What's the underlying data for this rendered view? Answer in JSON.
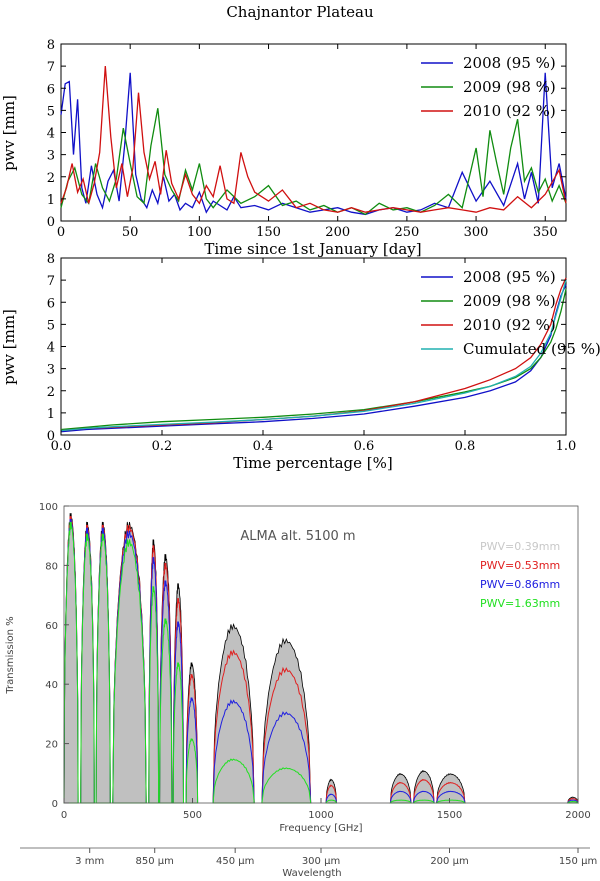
{
  "page_title": "Chajnantor Plateau",
  "chart_data": [
    {
      "type": "line",
      "xlabel": "Time since 1st January [day]",
      "ylabel": "pwv [mm]",
      "xlim": [
        0,
        365
      ],
      "ylim": [
        0,
        8
      ],
      "x_ticks": [
        "0",
        "50",
        "100",
        "150",
        "200",
        "250",
        "300",
        "350"
      ],
      "y_ticks": [
        "0",
        "1",
        "2",
        "3",
        "4",
        "5",
        "6",
        "7",
        "8"
      ],
      "legend_position": "top-right",
      "series": [
        {
          "name": "2008 (95 %)",
          "color": "#1010c8",
          "x": [
            0,
            3,
            6,
            9,
            12,
            15,
            18,
            22,
            26,
            30,
            34,
            38,
            42,
            46,
            50,
            54,
            58,
            62,
            66,
            70,
            74,
            78,
            82,
            86,
            90,
            95,
            100,
            105,
            110,
            115,
            120,
            125,
            130,
            140,
            150,
            160,
            170,
            180,
            190,
            200,
            210,
            220,
            230,
            240,
            250,
            260,
            270,
            280,
            290,
            300,
            310,
            320,
            330,
            335,
            340,
            345,
            350,
            355,
            360,
            365
          ],
          "y": [
            4.8,
            6.2,
            6.3,
            3.0,
            5.5,
            1.5,
            0.8,
            2.5,
            1.2,
            0.6,
            1.8,
            2.3,
            0.9,
            3.4,
            6.7,
            2.1,
            1.0,
            0.6,
            1.4,
            0.8,
            2.0,
            0.9,
            1.2,
            0.5,
            0.8,
            0.6,
            1.3,
            0.4,
            0.9,
            0.7,
            0.5,
            1.1,
            0.6,
            0.7,
            0.5,
            0.8,
            0.6,
            0.4,
            0.5,
            0.6,
            0.4,
            0.3,
            0.5,
            0.6,
            0.4,
            0.5,
            0.8,
            0.6,
            2.2,
            0.9,
            1.8,
            0.7,
            2.6,
            1.0,
            2.2,
            0.8,
            6.7,
            1.5,
            2.6,
            1.0
          ]
        },
        {
          "name": "2009 (98 %)",
          "color": "#108c10",
          "x": [
            0,
            5,
            10,
            15,
            20,
            25,
            30,
            35,
            40,
            45,
            50,
            55,
            60,
            65,
            70,
            75,
            80,
            85,
            90,
            95,
            100,
            105,
            110,
            120,
            130,
            140,
            150,
            160,
            170,
            180,
            190,
            200,
            210,
            220,
            230,
            240,
            250,
            260,
            270,
            280,
            290,
            300,
            305,
            310,
            315,
            320,
            325,
            330,
            335,
            340,
            345,
            350,
            355,
            360,
            365
          ],
          "y": [
            0.6,
            1.8,
            2.4,
            1.2,
            0.8,
            2.6,
            1.5,
            0.9,
            1.9,
            4.2,
            2.6,
            1.1,
            0.8,
            3.4,
            5.1,
            2.1,
            1.4,
            0.9,
            2.3,
            1.4,
            2.6,
            1.0,
            0.6,
            1.4,
            0.8,
            1.1,
            1.6,
            0.7,
            0.9,
            0.5,
            0.7,
            0.4,
            0.6,
            0.3,
            0.8,
            0.5,
            0.6,
            0.4,
            0.7,
            1.2,
            0.6,
            3.3,
            1.1,
            4.1,
            2.6,
            1.2,
            3.3,
            4.6,
            1.8,
            2.4,
            1.3,
            1.9,
            0.9,
            1.6,
            0.8
          ]
        },
        {
          "name": "2010 (92 %)",
          "color": "#d01010",
          "x": [
            0,
            4,
            8,
            12,
            16,
            20,
            24,
            28,
            32,
            36,
            40,
            44,
            48,
            52,
            56,
            60,
            64,
            68,
            72,
            76,
            80,
            85,
            90,
            95,
            100,
            105,
            110,
            115,
            120,
            125,
            130,
            135,
            140,
            150,
            160,
            170,
            180,
            190,
            200,
            210,
            220,
            230,
            240,
            250,
            260,
            270,
            280,
            290,
            300,
            310,
            320,
            330,
            340,
            350,
            360,
            365
          ],
          "y": [
            0.8,
            1.5,
            2.6,
            1.3,
            1.9,
            0.8,
            1.7,
            3.1,
            7.0,
            3.8,
            1.5,
            2.6,
            1.1,
            2.4,
            5.8,
            3.1,
            1.9,
            2.7,
            1.2,
            3.2,
            1.7,
            1.0,
            2.1,
            1.2,
            0.8,
            1.6,
            1.1,
            2.5,
            1.0,
            0.8,
            3.1,
            2.0,
            1.3,
            0.9,
            1.4,
            0.6,
            0.8,
            0.5,
            0.4,
            0.6,
            0.4,
            0.5,
            0.6,
            0.5,
            0.4,
            0.5,
            0.6,
            0.5,
            0.4,
            0.6,
            0.5,
            1.1,
            0.6,
            1.2,
            2.3,
            0.8
          ]
        }
      ]
    },
    {
      "type": "line",
      "xlabel": "Time percentage [%]",
      "ylabel": "pwv [mm]",
      "xlim": [
        0,
        1
      ],
      "ylim": [
        0,
        8
      ],
      "x_ticks": [
        "0.0",
        "0.2",
        "0.4",
        "0.6",
        "0.8",
        "1.0"
      ],
      "y_ticks": [
        "0",
        "1",
        "2",
        "3",
        "4",
        "5",
        "6",
        "7",
        "8"
      ],
      "legend_position": "top-right",
      "series": [
        {
          "name": "2008 (95 %)",
          "color": "#1010c8",
          "x": [
            0,
            0.05,
            0.1,
            0.2,
            0.3,
            0.4,
            0.5,
            0.6,
            0.7,
            0.8,
            0.85,
            0.9,
            0.93,
            0.95,
            0.97,
            0.98,
            0.99,
            1.0
          ],
          "y": [
            0.15,
            0.25,
            0.3,
            0.4,
            0.5,
            0.6,
            0.75,
            0.95,
            1.3,
            1.7,
            2.0,
            2.4,
            2.9,
            3.5,
            4.5,
            5.5,
            6.3,
            6.8
          ]
        },
        {
          "name": "2009 (98 %)",
          "color": "#108c10",
          "x": [
            0,
            0.05,
            0.1,
            0.2,
            0.3,
            0.4,
            0.5,
            0.6,
            0.7,
            0.8,
            0.85,
            0.9,
            0.93,
            0.95,
            0.97,
            0.98,
            0.99,
            1.0
          ],
          "y": [
            0.25,
            0.35,
            0.45,
            0.6,
            0.7,
            0.8,
            0.95,
            1.15,
            1.5,
            1.95,
            2.2,
            2.6,
            3.0,
            3.5,
            4.2,
            4.8,
            5.6,
            6.6
          ]
        },
        {
          "name": "2010 (92 %)",
          "color": "#d01010",
          "x": [
            0,
            0.05,
            0.1,
            0.2,
            0.3,
            0.4,
            0.5,
            0.6,
            0.7,
            0.8,
            0.85,
            0.9,
            0.93,
            0.95,
            0.97,
            0.98,
            0.99,
            1.0
          ],
          "y": [
            0.2,
            0.3,
            0.35,
            0.45,
            0.55,
            0.7,
            0.85,
            1.1,
            1.5,
            2.1,
            2.5,
            3.0,
            3.5,
            4.1,
            5.0,
            5.9,
            6.6,
            7.1
          ]
        },
        {
          "name": "Cumulated (95 %)",
          "color": "#20b0b0",
          "x": [
            0,
            0.05,
            0.1,
            0.2,
            0.3,
            0.4,
            0.5,
            0.6,
            0.7,
            0.8,
            0.85,
            0.9,
            0.93,
            0.95,
            0.97,
            0.98,
            0.99,
            1.0
          ],
          "y": [
            0.2,
            0.3,
            0.37,
            0.48,
            0.58,
            0.7,
            0.85,
            1.07,
            1.43,
            1.9,
            2.2,
            2.65,
            3.1,
            3.7,
            4.6,
            5.4,
            6.2,
            7.0
          ]
        }
      ]
    },
    {
      "type": "area",
      "title": "ALMA alt. 5100 m",
      "xlabel": "Frequency [GHz]",
      "ylabel": "Transmission %",
      "secondary_xlabel": "Wavelength",
      "xlim": [
        0,
        2000
      ],
      "ylim": [
        0,
        100
      ],
      "x_ticks": [
        "0",
        "500",
        "1000",
        "1500",
        "2000"
      ],
      "y_ticks": [
        "0",
        "20",
        "40",
        "60",
        "80",
        "100"
      ],
      "wavelength_ticks": [
        {
          "label": "3 mm",
          "freq": 100
        },
        {
          "label": "850 μm",
          "freq": 353
        },
        {
          "label": "450 μm",
          "freq": 666
        },
        {
          "label": "300 μm",
          "freq": 1000
        },
        {
          "label": "200 μm",
          "freq": 1500
        },
        {
          "label": "150 μm",
          "freq": 2000
        }
      ],
      "legend_position": "top-right",
      "series": [
        {
          "name": "PWV=0.39mm",
          "color": "#c8c8c8"
        },
        {
          "name": "PWV=0.53mm",
          "color": "#e02020"
        },
        {
          "name": "PWV=0.86mm",
          "color": "#2020e0"
        },
        {
          "name": "PWV=1.63mm",
          "color": "#20e020"
        }
      ],
      "windows": [
        {
          "lo": 0,
          "hi": 55,
          "peaks": [
            99,
            98,
            97,
            96
          ]
        },
        {
          "lo": 65,
          "hi": 118,
          "peaks": [
            96,
            95,
            94,
            92
          ]
        },
        {
          "lo": 125,
          "hi": 180,
          "peaks": [
            96,
            95,
            94,
            92
          ]
        },
        {
          "lo": 190,
          "hi": 320,
          "peaks": [
            96,
            95,
            93,
            90
          ]
        },
        {
          "lo": 330,
          "hi": 368,
          "peaks": [
            90,
            88,
            84,
            74
          ]
        },
        {
          "lo": 372,
          "hi": 420,
          "peaks": [
            85,
            82,
            76,
            63
          ]
        },
        {
          "lo": 425,
          "hi": 465,
          "peaks": [
            75,
            70,
            62,
            48
          ]
        },
        {
          "lo": 475,
          "hi": 520,
          "peaks": [
            48,
            44,
            36,
            22
          ]
        },
        {
          "lo": 580,
          "hi": 740,
          "peaks": [
            61,
            52,
            35,
            15
          ]
        },
        {
          "lo": 770,
          "hi": 960,
          "peaks": [
            56,
            46,
            31,
            12
          ]
        },
        {
          "lo": 1020,
          "hi": 1060,
          "peaks": [
            8,
            6,
            3,
            1
          ]
        },
        {
          "lo": 1270,
          "hi": 1350,
          "peaks": [
            10,
            7,
            4,
            1
          ]
        },
        {
          "lo": 1360,
          "hi": 1440,
          "peaks": [
            11,
            8,
            4,
            1
          ]
        },
        {
          "lo": 1450,
          "hi": 1560,
          "peaks": [
            10,
            7,
            4,
            1
          ]
        },
        {
          "lo": 1960,
          "hi": 2000,
          "peaks": [
            2,
            1.5,
            1,
            0.5
          ]
        }
      ]
    }
  ]
}
